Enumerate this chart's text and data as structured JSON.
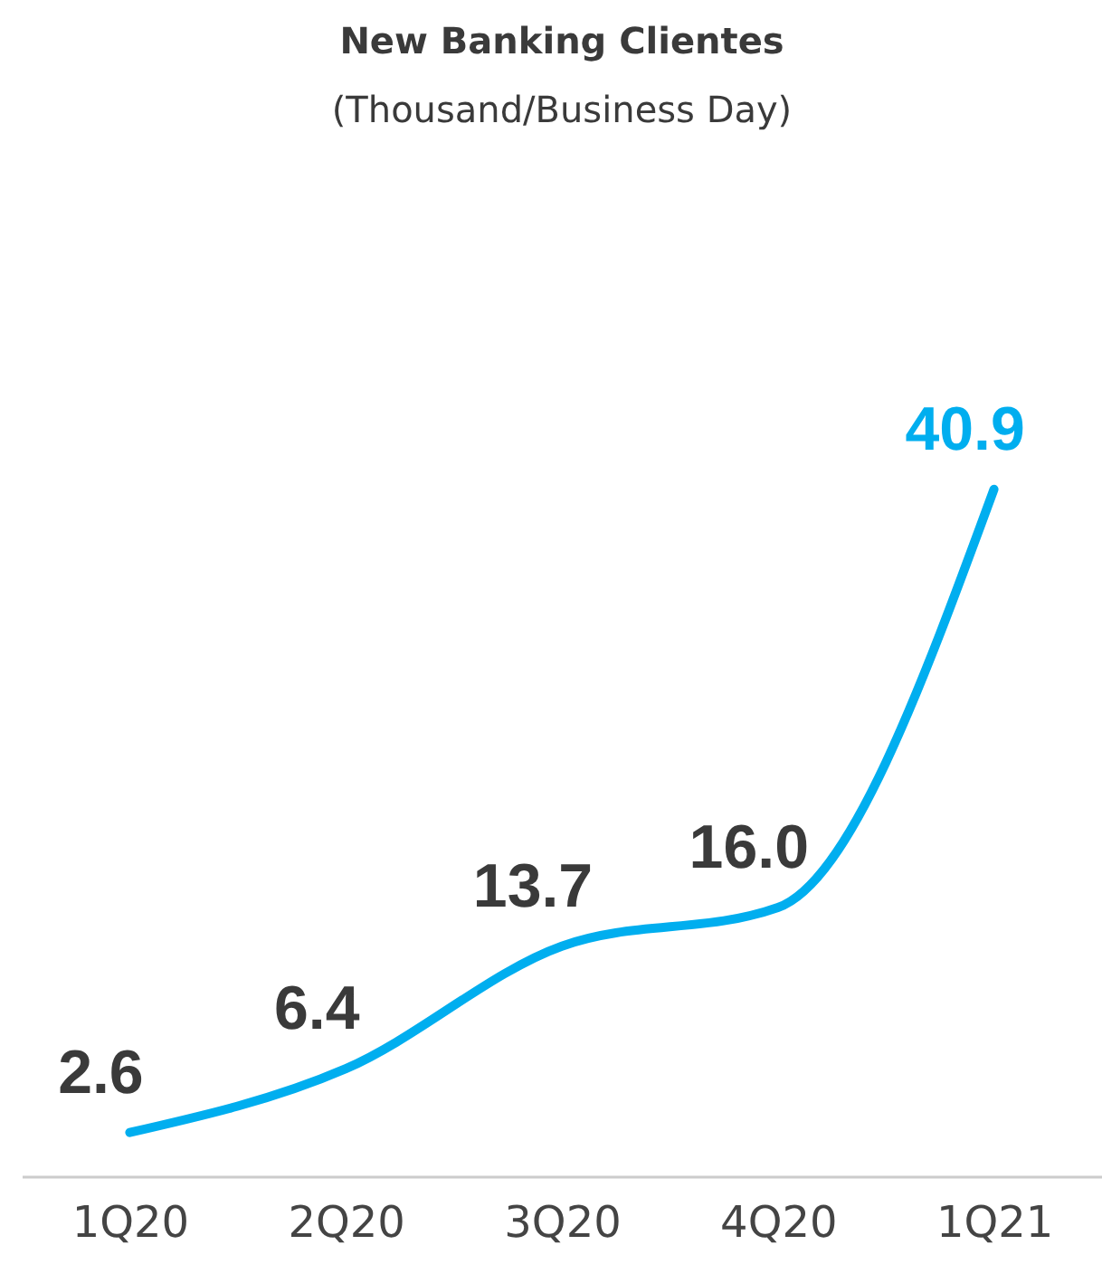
{
  "chart_data": {
    "type": "line",
    "title": "New Banking Clientes",
    "subtitle": "(Thousand/Business Day)",
    "categories": [
      "1Q20",
      "2Q20",
      "3Q20",
      "4Q20",
      "1Q21"
    ],
    "series": [
      {
        "color": "#00aeef",
        "values": [
          2.6,
          6.4,
          13.7,
          16.0,
          40.9
        ],
        "value_labels": [
          "2.6",
          "6.4",
          "13.7",
          "16.0",
          "40.9"
        ]
      }
    ],
    "grid": false,
    "marker": "none",
    "line_style": "solid"
  }
}
